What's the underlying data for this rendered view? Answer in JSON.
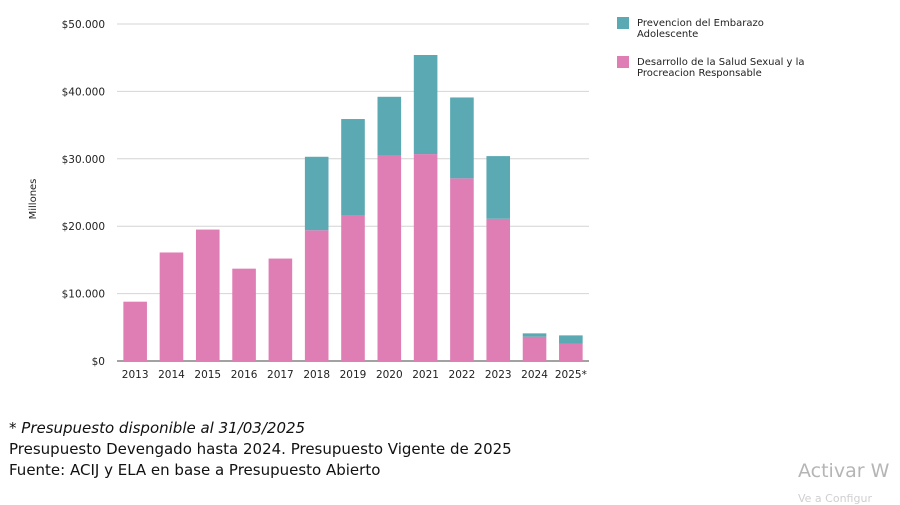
{
  "chart_data": {
    "type": "bar",
    "stacked": true,
    "categories": [
      "2013",
      "2014",
      "2015",
      "2016",
      "2017",
      "2018",
      "2019",
      "2020",
      "2021",
      "2022",
      "2023",
      "2024",
      "2025*"
    ],
    "series": [
      {
        "name": "Desarrollo de la Salud Sexual y la Procreacion Responsable",
        "color": "#df7eb5",
        "values": [
          8800,
          16100,
          19500,
          13700,
          15200,
          19400,
          21600,
          30500,
          30700,
          27100,
          21100,
          3600,
          2600
        ]
      },
      {
        "name": "Prevencion del Embarazo Adolescente",
        "color": "#5ba9b3",
        "values": [
          0,
          0,
          0,
          0,
          0,
          10900,
          14300,
          8700,
          14700,
          12000,
          9300,
          500,
          1200
        ]
      }
    ],
    "ylim": [
      0,
      50000
    ],
    "yticks": [
      0,
      10000,
      20000,
      30000,
      40000,
      50000
    ],
    "ytick_labels": [
      "$0",
      "$10.000",
      "$20.000",
      "$30.000",
      "$40.000",
      "$50.000"
    ],
    "ylabel": "Millones",
    "xlabel": "",
    "grid": true,
    "legend_position": "top-right",
    "legend": [
      {
        "label_lines": [
          "Prevencion del Embarazo",
          "Adolescente"
        ],
        "color": "#5ba9b3"
      },
      {
        "label_lines": [
          "Desarrollo de la Salud Sexual y la",
          "Procreacion Responsable"
        ],
        "color": "#df7eb5"
      }
    ]
  },
  "notes": {
    "line1": "* Presupuesto disponible al 31/03/2025",
    "line2": "Presupuesto Devengado hasta 2024. Presupuesto Vigente de 2025",
    "line3": "Fuente: ACIJ y ELA en base a Presupuesto Abierto"
  },
  "watermark": {
    "title": "Activar W",
    "subtitle": "Ve a Configur"
  }
}
